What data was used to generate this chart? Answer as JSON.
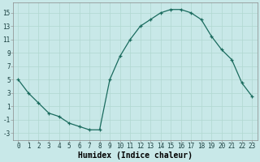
{
  "x": [
    0,
    1,
    2,
    3,
    4,
    5,
    6,
    7,
    8,
    9,
    10,
    11,
    12,
    13,
    14,
    15,
    16,
    17,
    18,
    19,
    20,
    21,
    22,
    23
  ],
  "y": [
    5,
    3,
    1.5,
    0,
    -0.5,
    -1.5,
    -2,
    -2.5,
    -2.5,
    5,
    8.5,
    11,
    13,
    14,
    15,
    15.5,
    15.5,
    15,
    14,
    11.5,
    9.5,
    8,
    4.5,
    2.5
  ],
  "line_color": "#1a6b5e",
  "bg_color": "#c8e8e8",
  "grid_color": "#b0d8d0",
  "xlabel": "Humidex (Indice chaleur)",
  "ylim": [
    -4,
    16.5
  ],
  "xlim": [
    -0.5,
    23.5
  ],
  "yticks": [
    -3,
    -1,
    1,
    3,
    5,
    7,
    9,
    11,
    13,
    15
  ],
  "xtick_labels": [
    "0",
    "1",
    "2",
    "3",
    "4",
    "5",
    "6",
    "7",
    "8",
    "9",
    "10",
    "11",
    "12",
    "13",
    "14",
    "15",
    "16",
    "17",
    "18",
    "19",
    "20",
    "21",
    "22",
    "23"
  ],
  "tick_fontsize": 5.5,
  "xlabel_fontsize": 7,
  "marker_size": 3,
  "linewidth": 0.9
}
